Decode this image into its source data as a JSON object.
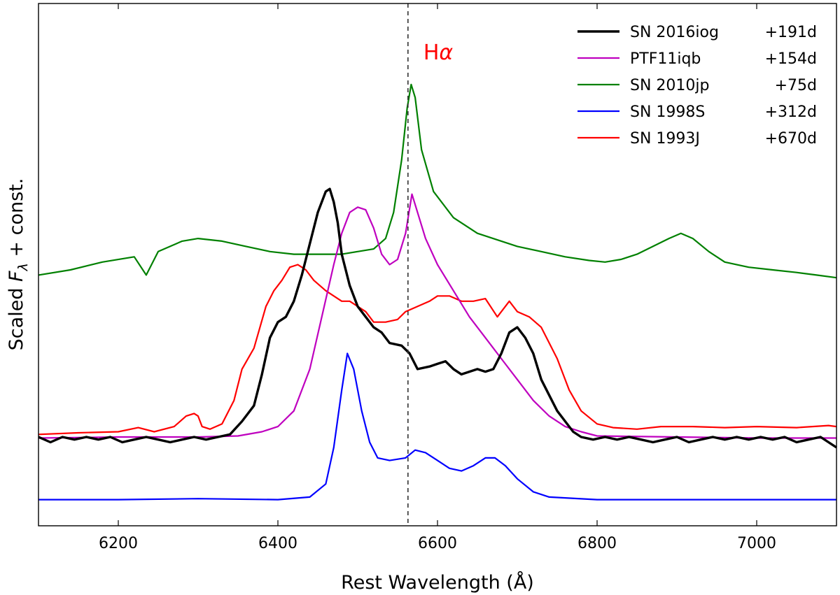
{
  "chart_data": {
    "type": "line",
    "title": "",
    "xlabel": "Rest Wavelength (Å)",
    "ylabel": "Scaled F_λ + const.",
    "ylabel_parts": {
      "prefix": "Scaled ",
      "symbol": "F",
      "subscript": "λ",
      "suffix": " + const."
    },
    "xlim": [
      6100,
      7100
    ],
    "ylim": [
      0,
      1
    ],
    "xticks": [
      6200,
      6400,
      6600,
      6800,
      7000
    ],
    "xtick_labels": [
      "6200",
      "6400",
      "6600",
      "6800",
      "7000"
    ],
    "yticks_shown": false,
    "grid": false,
    "legend_position": "top-right",
    "annotation": {
      "text_base": "H",
      "text_greek": "α",
      "x": 6563,
      "color": "#ff0000",
      "reference_line": "dashed",
      "line_color": "#333333"
    },
    "series": [
      {
        "name": "SN 2016iog",
        "label_tag": "SN 2016iog",
        "label_phase": "+191d",
        "color": "#000000",
        "bold": true,
        "points": [
          [
            6100,
            0.17
          ],
          [
            6115,
            0.16
          ],
          [
            6130,
            0.17
          ],
          [
            6145,
            0.165
          ],
          [
            6160,
            0.17
          ],
          [
            6175,
            0.165
          ],
          [
            6190,
            0.17
          ],
          [
            6205,
            0.16
          ],
          [
            6220,
            0.165
          ],
          [
            6235,
            0.17
          ],
          [
            6250,
            0.165
          ],
          [
            6265,
            0.16
          ],
          [
            6280,
            0.165
          ],
          [
            6295,
            0.17
          ],
          [
            6310,
            0.165
          ],
          [
            6325,
            0.17
          ],
          [
            6340,
            0.175
          ],
          [
            6355,
            0.2
          ],
          [
            6370,
            0.23
          ],
          [
            6380,
            0.29
          ],
          [
            6390,
            0.36
          ],
          [
            6400,
            0.39
          ],
          [
            6410,
            0.4
          ],
          [
            6420,
            0.43
          ],
          [
            6430,
            0.48
          ],
          [
            6440,
            0.54
          ],
          [
            6450,
            0.6
          ],
          [
            6460,
            0.64
          ],
          [
            6465,
            0.645
          ],
          [
            6470,
            0.62
          ],
          [
            6475,
            0.58
          ],
          [
            6480,
            0.52
          ],
          [
            6490,
            0.46
          ],
          [
            6500,
            0.42
          ],
          [
            6510,
            0.4
          ],
          [
            6520,
            0.38
          ],
          [
            6530,
            0.37
          ],
          [
            6540,
            0.35
          ],
          [
            6555,
            0.345
          ],
          [
            6565,
            0.33
          ],
          [
            6575,
            0.3
          ],
          [
            6590,
            0.305
          ],
          [
            6600,
            0.31
          ],
          [
            6610,
            0.315
          ],
          [
            6620,
            0.3
          ],
          [
            6630,
            0.29
          ],
          [
            6640,
            0.295
          ],
          [
            6650,
            0.3
          ],
          [
            6660,
            0.295
          ],
          [
            6670,
            0.3
          ],
          [
            6680,
            0.33
          ],
          [
            6690,
            0.37
          ],
          [
            6700,
            0.38
          ],
          [
            6710,
            0.36
          ],
          [
            6720,
            0.33
          ],
          [
            6730,
            0.28
          ],
          [
            6740,
            0.25
          ],
          [
            6750,
            0.22
          ],
          [
            6760,
            0.2
          ],
          [
            6770,
            0.18
          ],
          [
            6780,
            0.17
          ],
          [
            6795,
            0.165
          ],
          [
            6810,
            0.17
          ],
          [
            6825,
            0.165
          ],
          [
            6840,
            0.17
          ],
          [
            6855,
            0.165
          ],
          [
            6870,
            0.16
          ],
          [
            6885,
            0.165
          ],
          [
            6900,
            0.17
          ],
          [
            6915,
            0.16
          ],
          [
            6930,
            0.165
          ],
          [
            6945,
            0.17
          ],
          [
            6960,
            0.165
          ],
          [
            6975,
            0.17
          ],
          [
            6990,
            0.165
          ],
          [
            7005,
            0.17
          ],
          [
            7020,
            0.165
          ],
          [
            7035,
            0.17
          ],
          [
            7050,
            0.16
          ],
          [
            7065,
            0.165
          ],
          [
            7080,
            0.17
          ],
          [
            7090,
            0.16
          ],
          [
            7100,
            0.15
          ]
        ]
      },
      {
        "name": "PTF11iqb",
        "label_tag": "PTF11iqb",
        "label_phase": "+154d",
        "color": "#bf00bf",
        "bold": false,
        "points": [
          [
            6100,
            0.168
          ],
          [
            6200,
            0.17
          ],
          [
            6300,
            0.17
          ],
          [
            6350,
            0.172
          ],
          [
            6380,
            0.18
          ],
          [
            6400,
            0.19
          ],
          [
            6420,
            0.22
          ],
          [
            6440,
            0.3
          ],
          [
            6455,
            0.4
          ],
          [
            6470,
            0.5
          ],
          [
            6480,
            0.56
          ],
          [
            6490,
            0.6
          ],
          [
            6500,
            0.61
          ],
          [
            6510,
            0.605
          ],
          [
            6520,
            0.57
          ],
          [
            6530,
            0.52
          ],
          [
            6540,
            0.5
          ],
          [
            6550,
            0.51
          ],
          [
            6560,
            0.56
          ],
          [
            6568,
            0.635
          ],
          [
            6575,
            0.6
          ],
          [
            6585,
            0.55
          ],
          [
            6600,
            0.5
          ],
          [
            6620,
            0.45
          ],
          [
            6640,
            0.4
          ],
          [
            6660,
            0.36
          ],
          [
            6680,
            0.32
          ],
          [
            6700,
            0.28
          ],
          [
            6720,
            0.24
          ],
          [
            6740,
            0.21
          ],
          [
            6760,
            0.19
          ],
          [
            6780,
            0.18
          ],
          [
            6800,
            0.172
          ],
          [
            6900,
            0.17
          ],
          [
            7000,
            0.168
          ],
          [
            7100,
            0.168
          ]
        ]
      },
      {
        "name": "SN 2010jp",
        "label_tag": "SN 2010jp",
        "label_phase": "+75d",
        "color": "#008000",
        "bold": false,
        "points": [
          [
            6100,
            0.48
          ],
          [
            6140,
            0.49
          ],
          [
            6180,
            0.505
          ],
          [
            6220,
            0.515
          ],
          [
            6235,
            0.48
          ],
          [
            6250,
            0.525
          ],
          [
            6280,
            0.545
          ],
          [
            6300,
            0.55
          ],
          [
            6330,
            0.545
          ],
          [
            6360,
            0.535
          ],
          [
            6390,
            0.525
          ],
          [
            6420,
            0.52
          ],
          [
            6450,
            0.52
          ],
          [
            6480,
            0.52
          ],
          [
            6500,
            0.525
          ],
          [
            6520,
            0.53
          ],
          [
            6535,
            0.55
          ],
          [
            6545,
            0.6
          ],
          [
            6555,
            0.7
          ],
          [
            6562,
            0.8
          ],
          [
            6567,
            0.845
          ],
          [
            6572,
            0.82
          ],
          [
            6580,
            0.72
          ],
          [
            6595,
            0.64
          ],
          [
            6620,
            0.59
          ],
          [
            6650,
            0.56
          ],
          [
            6680,
            0.545
          ],
          [
            6700,
            0.535
          ],
          [
            6730,
            0.525
          ],
          [
            6760,
            0.515
          ],
          [
            6790,
            0.508
          ],
          [
            6810,
            0.505
          ],
          [
            6830,
            0.51
          ],
          [
            6850,
            0.52
          ],
          [
            6870,
            0.535
          ],
          [
            6890,
            0.55
          ],
          [
            6905,
            0.56
          ],
          [
            6920,
            0.55
          ],
          [
            6940,
            0.525
          ],
          [
            6960,
            0.505
          ],
          [
            6990,
            0.495
          ],
          [
            7020,
            0.49
          ],
          [
            7050,
            0.485
          ],
          [
            7075,
            0.48
          ],
          [
            7100,
            0.475
          ]
        ]
      },
      {
        "name": "SN 1998S",
        "label_tag": "SN 1998S",
        "label_phase": "+312d",
        "color": "#0000ff",
        "bold": false,
        "points": [
          [
            6100,
            0.05
          ],
          [
            6200,
            0.05
          ],
          [
            6300,
            0.052
          ],
          [
            6400,
            0.05
          ],
          [
            6440,
            0.055
          ],
          [
            6460,
            0.08
          ],
          [
            6470,
            0.15
          ],
          [
            6480,
            0.26
          ],
          [
            6487,
            0.33
          ],
          [
            6495,
            0.3
          ],
          [
            6505,
            0.22
          ],
          [
            6515,
            0.16
          ],
          [
            6525,
            0.13
          ],
          [
            6540,
            0.125
          ],
          [
            6560,
            0.13
          ],
          [
            6572,
            0.145
          ],
          [
            6585,
            0.14
          ],
          [
            6600,
            0.125
          ],
          [
            6615,
            0.11
          ],
          [
            6630,
            0.105
          ],
          [
            6645,
            0.115
          ],
          [
            6660,
            0.13
          ],
          [
            6672,
            0.13
          ],
          [
            6685,
            0.115
          ],
          [
            6700,
            0.09
          ],
          [
            6720,
            0.065
          ],
          [
            6740,
            0.055
          ],
          [
            6800,
            0.05
          ],
          [
            6900,
            0.05
          ],
          [
            7000,
            0.05
          ],
          [
            7100,
            0.05
          ]
        ]
      },
      {
        "name": "SN 1993J",
        "label_tag": "SN 1993J",
        "label_phase": "+670d",
        "color": "#ff0000",
        "bold": false,
        "points": [
          [
            6100,
            0.175
          ],
          [
            6150,
            0.178
          ],
          [
            6200,
            0.18
          ],
          [
            6225,
            0.188
          ],
          [
            6245,
            0.18
          ],
          [
            6270,
            0.19
          ],
          [
            6285,
            0.21
          ],
          [
            6295,
            0.215
          ],
          [
            6300,
            0.21
          ],
          [
            6305,
            0.19
          ],
          [
            6315,
            0.185
          ],
          [
            6330,
            0.195
          ],
          [
            6345,
            0.24
          ],
          [
            6355,
            0.3
          ],
          [
            6370,
            0.34
          ],
          [
            6385,
            0.42
          ],
          [
            6395,
            0.45
          ],
          [
            6405,
            0.47
          ],
          [
            6415,
            0.495
          ],
          [
            6425,
            0.5
          ],
          [
            6435,
            0.49
          ],
          [
            6445,
            0.47
          ],
          [
            6460,
            0.45
          ],
          [
            6470,
            0.44
          ],
          [
            6480,
            0.43
          ],
          [
            6490,
            0.43
          ],
          [
            6500,
            0.42
          ],
          [
            6510,
            0.41
          ],
          [
            6520,
            0.39
          ],
          [
            6535,
            0.39
          ],
          [
            6550,
            0.395
          ],
          [
            6560,
            0.41
          ],
          [
            6575,
            0.42
          ],
          [
            6590,
            0.43
          ],
          [
            6600,
            0.44
          ],
          [
            6615,
            0.44
          ],
          [
            6630,
            0.43
          ],
          [
            6645,
            0.43
          ],
          [
            6660,
            0.435
          ],
          [
            6675,
            0.4
          ],
          [
            6690,
            0.43
          ],
          [
            6700,
            0.41
          ],
          [
            6715,
            0.4
          ],
          [
            6730,
            0.38
          ],
          [
            6750,
            0.32
          ],
          [
            6765,
            0.26
          ],
          [
            6780,
            0.22
          ],
          [
            6800,
            0.195
          ],
          [
            6820,
            0.188
          ],
          [
            6850,
            0.185
          ],
          [
            6880,
            0.19
          ],
          [
            6920,
            0.19
          ],
          [
            6960,
            0.188
          ],
          [
            7000,
            0.19
          ],
          [
            7050,
            0.188
          ],
          [
            7090,
            0.192
          ],
          [
            7100,
            0.19
          ]
        ]
      }
    ]
  }
}
